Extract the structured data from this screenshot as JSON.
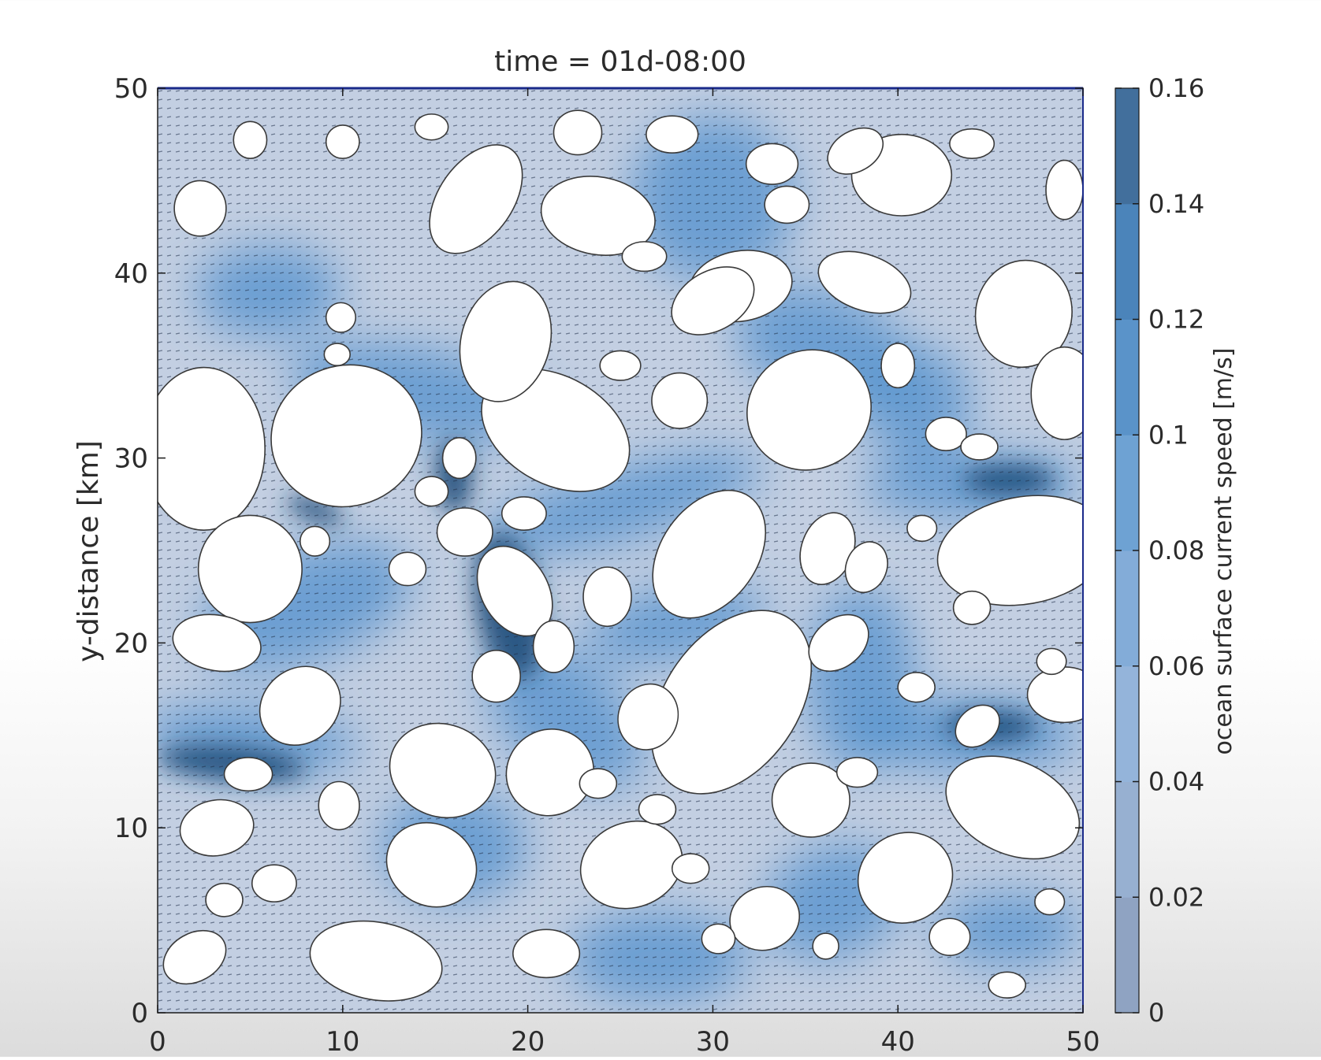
{
  "chart_data": {
    "type": "heatmap",
    "title": "time = 01d-08:00",
    "xlabel": "",
    "ylabel": "y-distance [km]",
    "xlim": [
      0,
      50
    ],
    "ylim": [
      0,
      50
    ],
    "x_ticks": [
      0,
      10,
      20,
      30,
      40,
      50
    ],
    "y_ticks": [
      0,
      10,
      20,
      30,
      40,
      50
    ],
    "colorbar": {
      "label": "ocean surface current speed [m/s]",
      "range": [
        0,
        0.16
      ],
      "ticks": [
        "0",
        "0.02",
        "0.04",
        "0.06",
        "0.08",
        "0.1",
        "0.12",
        "0.14",
        "0.16"
      ],
      "colors": [
        "#8fa3c2",
        "#97b0d1",
        "#94b4da",
        "#83acd8",
        "#6ea2d3",
        "#5a93c9",
        "#4b84ba",
        "#426f9c"
      ]
    },
    "floes": [
      {
        "x": 2.5,
        "y": 30.5,
        "rx": 3.3,
        "ry": 4.4,
        "rot": 0
      },
      {
        "x": 10.2,
        "y": 31.2,
        "rx": 4.1,
        "ry": 3.8,
        "rot": 20
      },
      {
        "x": 5.0,
        "y": 24.0,
        "rx": 2.8,
        "ry": 2.9,
        "rot": 0
      },
      {
        "x": 21.5,
        "y": 31.5,
        "rx": 4.3,
        "ry": 2.9,
        "rot": -30
      },
      {
        "x": 17.2,
        "y": 44.0,
        "rx": 3.3,
        "ry": 2.0,
        "rot": 55
      },
      {
        "x": 18.8,
        "y": 36.3,
        "rx": 2.4,
        "ry": 3.3,
        "rot": -15
      },
      {
        "x": 23.8,
        "y": 43.1,
        "rx": 3.1,
        "ry": 2.1,
        "rot": -10
      },
      {
        "x": 31.0,
        "y": 16.8,
        "rx": 5.5,
        "ry": 3.6,
        "rot": 55
      },
      {
        "x": 29.8,
        "y": 24.8,
        "rx": 2.6,
        "ry": 3.8,
        "rot": -35
      },
      {
        "x": 35.2,
        "y": 32.6,
        "rx": 3.4,
        "ry": 3.2,
        "rot": 30
      },
      {
        "x": 31.5,
        "y": 39.3,
        "rx": 2.8,
        "ry": 1.9,
        "rot": 10
      },
      {
        "x": 40.2,
        "y": 45.3,
        "rx": 2.7,
        "ry": 2.2,
        "rot": 0
      },
      {
        "x": 38.2,
        "y": 39.5,
        "rx": 2.6,
        "ry": 1.5,
        "rot": -20
      },
      {
        "x": 46.8,
        "y": 25.0,
        "rx": 4.7,
        "ry": 2.9,
        "rot": 10
      },
      {
        "x": 46.8,
        "y": 37.8,
        "rx": 2.6,
        "ry": 2.9,
        "rot": -10
      },
      {
        "x": 46.2,
        "y": 11.1,
        "rx": 3.8,
        "ry": 2.5,
        "rot": -25
      },
      {
        "x": 49.0,
        "y": 33.5,
        "rx": 1.8,
        "ry": 2.5,
        "rot": 0
      },
      {
        "x": 49.0,
        "y": 17.2,
        "rx": 2.0,
        "ry": 1.5,
        "rot": 0
      },
      {
        "x": 11.8,
        "y": 2.8,
        "rx": 3.6,
        "ry": 2.1,
        "rot": -10
      },
      {
        "x": 15.4,
        "y": 13.1,
        "rx": 2.9,
        "ry": 2.5,
        "rot": -20
      },
      {
        "x": 14.8,
        "y": 8.0,
        "rx": 2.5,
        "ry": 2.2,
        "rot": -30
      },
      {
        "x": 21.2,
        "y": 13.0,
        "rx": 2.4,
        "ry": 2.3,
        "rot": 40
      },
      {
        "x": 25.6,
        "y": 8.0,
        "rx": 2.8,
        "ry": 2.3,
        "rot": 20
      },
      {
        "x": 30.0,
        "y": 38.5,
        "rx": 2.4,
        "ry": 1.6,
        "rot": 30
      },
      {
        "x": 40.4,
        "y": 7.3,
        "rx": 2.6,
        "ry": 2.4,
        "rot": 30
      },
      {
        "x": 3.2,
        "y": 20.0,
        "rx": 2.4,
        "ry": 1.5,
        "rot": -10
      },
      {
        "x": 7.7,
        "y": 16.6,
        "rx": 2.3,
        "ry": 2.0,
        "rot": 40
      },
      {
        "x": 3.2,
        "y": 10.0,
        "rx": 2.0,
        "ry": 1.5,
        "rot": 10
      },
      {
        "x": 2.0,
        "y": 3.0,
        "rx": 1.8,
        "ry": 1.3,
        "rot": 30
      },
      {
        "x": 35.3,
        "y": 11.5,
        "rx": 2.1,
        "ry": 2.0,
        "rot": 0
      },
      {
        "x": 32.8,
        "y": 5.1,
        "rx": 1.9,
        "ry": 1.7,
        "rot": 20
      },
      {
        "x": 36.8,
        "y": 20.0,
        "rx": 1.8,
        "ry": 1.3,
        "rot": 40
      },
      {
        "x": 26.5,
        "y": 16.0,
        "rx": 1.6,
        "ry": 1.8,
        "rot": -20
      },
      {
        "x": 19.3,
        "y": 22.8,
        "rx": 1.8,
        "ry": 2.6,
        "rot": 30
      },
      {
        "x": 21.0,
        "y": 3.2,
        "rx": 1.8,
        "ry": 1.3,
        "rot": 0
      },
      {
        "x": 24.3,
        "y": 22.5,
        "rx": 1.3,
        "ry": 1.6,
        "rot": 0
      },
      {
        "x": 44.3,
        "y": 15.5,
        "rx": 1.3,
        "ry": 1.0,
        "rot": 40
      },
      {
        "x": 37.7,
        "y": 46.6,
        "rx": 1.6,
        "ry": 1.1,
        "rot": 30
      },
      {
        "x": 40.0,
        "y": 35.0,
        "rx": 0.9,
        "ry": 1.2,
        "rot": 0
      },
      {
        "x": 2.3,
        "y": 43.5,
        "rx": 1.4,
        "ry": 1.5,
        "rot": 0
      },
      {
        "x": 5.0,
        "y": 47.2,
        "rx": 0.9,
        "ry": 1.0,
        "rot": 0
      },
      {
        "x": 10.0,
        "y": 47.1,
        "rx": 0.9,
        "ry": 0.9,
        "rot": 0
      },
      {
        "x": 14.8,
        "y": 47.9,
        "rx": 0.9,
        "ry": 0.7,
        "rot": 0
      },
      {
        "x": 22.7,
        "y": 47.6,
        "rx": 1.3,
        "ry": 1.2,
        "rot": 0
      },
      {
        "x": 27.8,
        "y": 47.5,
        "rx": 1.4,
        "ry": 1.0,
        "rot": 0
      },
      {
        "x": 44.0,
        "y": 47.0,
        "rx": 1.2,
        "ry": 0.8,
        "rot": 0
      },
      {
        "x": 49.0,
        "y": 44.5,
        "rx": 1.0,
        "ry": 1.6,
        "rot": 0
      },
      {
        "x": 4.9,
        "y": 12.9,
        "rx": 1.3,
        "ry": 0.9,
        "rot": 0
      },
      {
        "x": 6.3,
        "y": 7.0,
        "rx": 1.2,
        "ry": 1.0,
        "rot": 0
      },
      {
        "x": 3.6,
        "y": 6.1,
        "rx": 1.0,
        "ry": 0.9,
        "rot": 0
      },
      {
        "x": 9.8,
        "y": 11.2,
        "rx": 1.1,
        "ry": 1.3,
        "rot": 0
      },
      {
        "x": 18.3,
        "y": 18.2,
        "rx": 1.3,
        "ry": 1.4,
        "rot": 0
      },
      {
        "x": 21.4,
        "y": 19.8,
        "rx": 1.1,
        "ry": 1.4,
        "rot": 0
      },
      {
        "x": 23.8,
        "y": 12.4,
        "rx": 1.0,
        "ry": 0.8,
        "rot": 0
      },
      {
        "x": 27.0,
        "y": 11.0,
        "rx": 1.0,
        "ry": 0.8,
        "rot": 0
      },
      {
        "x": 28.8,
        "y": 7.8,
        "rx": 1.0,
        "ry": 0.8,
        "rot": 0
      },
      {
        "x": 30.3,
        "y": 4.0,
        "rx": 0.9,
        "ry": 0.8,
        "rot": 0
      },
      {
        "x": 36.1,
        "y": 3.6,
        "rx": 0.7,
        "ry": 0.7,
        "rot": 0
      },
      {
        "x": 37.8,
        "y": 13.0,
        "rx": 1.1,
        "ry": 0.8,
        "rot": 0
      },
      {
        "x": 42.8,
        "y": 4.1,
        "rx": 1.1,
        "ry": 1.0,
        "rot": 0
      },
      {
        "x": 45.9,
        "y": 1.5,
        "rx": 1.0,
        "ry": 0.7,
        "rot": 0
      },
      {
        "x": 48.2,
        "y": 6.0,
        "rx": 0.8,
        "ry": 0.7,
        "rot": 0
      },
      {
        "x": 44.0,
        "y": 21.9,
        "rx": 1.0,
        "ry": 0.9,
        "rot": 0
      },
      {
        "x": 42.6,
        "y": 31.3,
        "rx": 1.1,
        "ry": 0.9,
        "rot": 0
      },
      {
        "x": 44.4,
        "y": 30.6,
        "rx": 1.0,
        "ry": 0.7,
        "rot": 0
      },
      {
        "x": 41.3,
        "y": 26.2,
        "rx": 0.8,
        "ry": 0.7,
        "rot": 0
      },
      {
        "x": 41.0,
        "y": 17.6,
        "rx": 1.0,
        "ry": 0.8,
        "rot": 0
      },
      {
        "x": 48.3,
        "y": 19.0,
        "rx": 0.8,
        "ry": 0.7,
        "rot": 0
      },
      {
        "x": 36.2,
        "y": 25.1,
        "rx": 1.4,
        "ry": 2.0,
        "rot": -20
      },
      {
        "x": 38.3,
        "y": 24.1,
        "rx": 1.1,
        "ry": 1.4,
        "rot": -20
      },
      {
        "x": 34.0,
        "y": 43.7,
        "rx": 1.2,
        "ry": 1.0,
        "rot": 0
      },
      {
        "x": 33.2,
        "y": 45.9,
        "rx": 1.4,
        "ry": 1.1,
        "rot": 0
      },
      {
        "x": 28.2,
        "y": 33.1,
        "rx": 1.5,
        "ry": 1.5,
        "rot": 0
      },
      {
        "x": 26.3,
        "y": 40.9,
        "rx": 1.2,
        "ry": 0.8,
        "rot": 0
      },
      {
        "x": 25.0,
        "y": 35.0,
        "rx": 1.1,
        "ry": 0.8,
        "rot": 0
      },
      {
        "x": 13.5,
        "y": 24.0,
        "rx": 1.0,
        "ry": 0.9,
        "rot": 0
      },
      {
        "x": 14.8,
        "y": 28.2,
        "rx": 0.9,
        "ry": 0.8,
        "rot": 0
      },
      {
        "x": 8.5,
        "y": 25.5,
        "rx": 0.8,
        "ry": 0.8,
        "rot": 0
      },
      {
        "x": 9.9,
        "y": 37.6,
        "rx": 0.8,
        "ry": 0.8,
        "rot": 0
      },
      {
        "x": 9.7,
        "y": 35.6,
        "rx": 0.7,
        "ry": 0.6,
        "rot": 0
      },
      {
        "x": 16.6,
        "y": 26.0,
        "rx": 1.5,
        "ry": 1.3,
        "rot": 0
      },
      {
        "x": 19.8,
        "y": 27.0,
        "rx": 1.2,
        "ry": 0.9,
        "rot": 0
      },
      {
        "x": 16.3,
        "y": 30.0,
        "rx": 0.9,
        "ry": 1.1,
        "rot": 0
      }
    ],
    "dark_spots": [
      {
        "x": 19.0,
        "y": 22.0,
        "rx": 1.8,
        "ry": 4.0,
        "rot": 10
      },
      {
        "x": 4.0,
        "y": 13.5,
        "rx": 4.0,
        "ry": 0.9,
        "rot": -5
      },
      {
        "x": 46.0,
        "y": 28.8,
        "rx": 2.5,
        "ry": 0.8,
        "rot": 0
      },
      {
        "x": 45.0,
        "y": 15.5,
        "rx": 2.5,
        "ry": 0.8,
        "rot": 0
      },
      {
        "x": 16.0,
        "y": 29.0,
        "rx": 1.0,
        "ry": 2.0,
        "rot": 0
      },
      {
        "x": 8.5,
        "y": 27.2,
        "rx": 1.6,
        "ry": 0.6,
        "rot": -20
      },
      {
        "x": 2.0,
        "y": 28.0,
        "rx": 1.3,
        "ry": 0.5,
        "rot": 0
      }
    ],
    "current_bands": [
      {
        "x": 14.0,
        "y": 33.5,
        "rx": 7.0,
        "ry": 2.5,
        "rot": -10
      },
      {
        "x": 25.0,
        "y": 27.5,
        "rx": 8.0,
        "ry": 2.0,
        "rot": 15
      },
      {
        "x": 8.0,
        "y": 22.0,
        "rx": 6.0,
        "ry": 3.0,
        "rot": 20
      },
      {
        "x": 5.0,
        "y": 14.8,
        "rx": 6.0,
        "ry": 1.8,
        "rot": -5
      },
      {
        "x": 22.0,
        "y": 16.0,
        "rx": 5.0,
        "ry": 3.0,
        "rot": -40
      },
      {
        "x": 30.0,
        "y": 44.0,
        "rx": 4.5,
        "ry": 4.5,
        "rot": 0
      },
      {
        "x": 36.0,
        "y": 36.0,
        "rx": 5.0,
        "ry": 3.0,
        "rot": -20
      },
      {
        "x": 44.0,
        "y": 28.5,
        "rx": 6.0,
        "ry": 1.8,
        "rot": 0
      },
      {
        "x": 44.0,
        "y": 15.0,
        "rx": 6.0,
        "ry": 2.0,
        "rot": 0
      },
      {
        "x": 36.5,
        "y": 6.0,
        "rx": 4.0,
        "ry": 3.0,
        "rot": 20
      },
      {
        "x": 28.0,
        "y": 21.0,
        "rx": 5.0,
        "ry": 2.0,
        "rot": 10
      },
      {
        "x": 38.0,
        "y": 18.0,
        "rx": 3.0,
        "ry": 5.0,
        "rot": 0
      },
      {
        "x": 16.0,
        "y": 9.0,
        "rx": 4.0,
        "ry": 3.0,
        "rot": 0
      },
      {
        "x": 27.0,
        "y": 3.0,
        "rx": 5.0,
        "ry": 2.5,
        "rot": 0
      },
      {
        "x": 46.0,
        "y": 4.5,
        "rx": 4.0,
        "ry": 2.0,
        "rot": 0
      },
      {
        "x": 6.0,
        "y": 39.0,
        "rx": 4.0,
        "ry": 2.5,
        "rot": 0
      },
      {
        "x": 41.0,
        "y": 33.0,
        "rx": 3.0,
        "ry": 3.0,
        "rot": 0
      }
    ],
    "grid": false,
    "legend": "colorbar-right"
  }
}
